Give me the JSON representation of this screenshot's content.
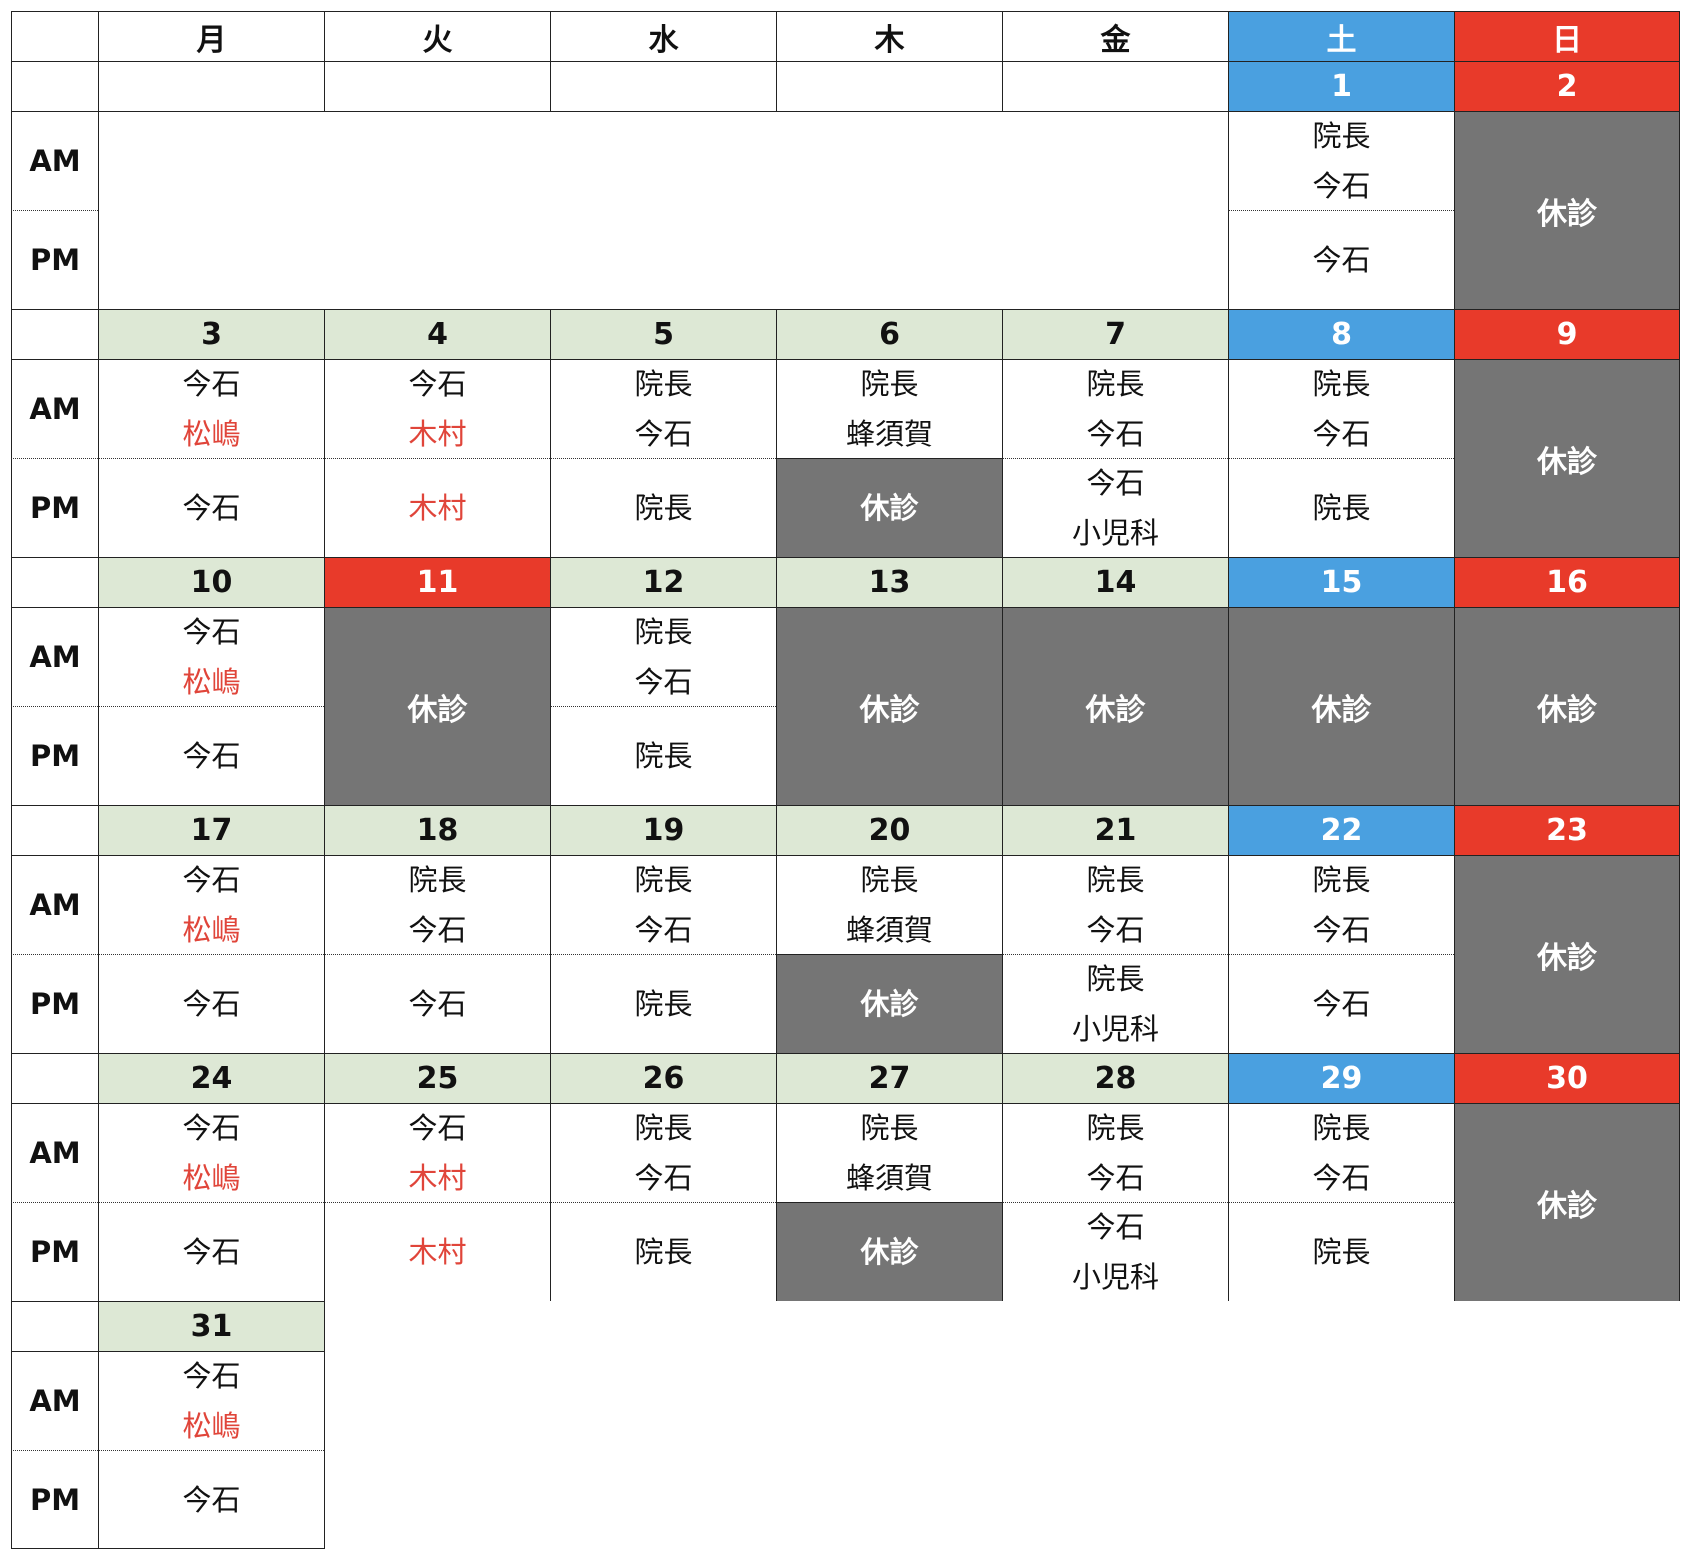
{
  "weekday_headers": [
    "月",
    "火",
    "水",
    "木",
    "金",
    "土",
    "日"
  ],
  "am_label": "AM",
  "pm_label": "PM",
  "closed_label": "休診",
  "colors": {
    "saturday": "#4aa0e0",
    "sunday": "#e83a2a",
    "weekday": "#dde8d5",
    "closed": "#757575",
    "red_doctor": "#e0453a"
  },
  "weeks": [
    {
      "days": [
        null,
        null,
        null,
        null,
        null,
        {
          "date": "1",
          "am": [
            "院長",
            "今石"
          ],
          "pm": [
            "今石"
          ]
        },
        {
          "date": "2",
          "full_closed": true
        }
      ]
    },
    {
      "days": [
        {
          "date": "3",
          "am": [
            "今石",
            "松嶋"
          ],
          "pm": [
            "今石"
          ]
        },
        {
          "date": "4",
          "am": [
            "今石",
            "木村"
          ],
          "pm": [
            "木村"
          ]
        },
        {
          "date": "5",
          "am": [
            "院長",
            "今石"
          ],
          "pm": [
            "院長"
          ]
        },
        {
          "date": "6",
          "am": [
            "院長",
            "蜂須賀"
          ],
          "pm_closed": true
        },
        {
          "date": "7",
          "am": [
            "院長",
            "今石"
          ],
          "pm": [
            "今石",
            "小児科"
          ]
        },
        {
          "date": "8",
          "am": [
            "院長",
            "今石"
          ],
          "pm": [
            "院長"
          ]
        },
        {
          "date": "9",
          "full_closed": true
        }
      ]
    },
    {
      "days": [
        {
          "date": "10",
          "am": [
            "今石",
            "松嶋"
          ],
          "pm": [
            "今石"
          ]
        },
        {
          "date": "11",
          "full_closed": true,
          "holiday": true
        },
        {
          "date": "12",
          "am": [
            "院長",
            "今石"
          ],
          "pm": [
            "院長"
          ]
        },
        {
          "date": "13",
          "full_closed": true
        },
        {
          "date": "14",
          "full_closed": true
        },
        {
          "date": "15",
          "full_closed": true
        },
        {
          "date": "16",
          "full_closed": true
        }
      ]
    },
    {
      "days": [
        {
          "date": "17",
          "am": [
            "今石",
            "松嶋"
          ],
          "pm": [
            "今石"
          ]
        },
        {
          "date": "18",
          "am": [
            "院長",
            "今石"
          ],
          "pm": [
            "今石"
          ]
        },
        {
          "date": "19",
          "am": [
            "院長",
            "今石"
          ],
          "pm": [
            "院長"
          ]
        },
        {
          "date": "20",
          "am": [
            "院長",
            "蜂須賀"
          ],
          "pm_closed": true
        },
        {
          "date": "21",
          "am": [
            "院長",
            "今石"
          ],
          "pm": [
            "院長",
            "小児科"
          ]
        },
        {
          "date": "22",
          "am": [
            "院長",
            "今石"
          ],
          "pm": [
            "今石"
          ]
        },
        {
          "date": "23",
          "full_closed": true
        }
      ]
    },
    {
      "days": [
        {
          "date": "24",
          "am": [
            "今石",
            "松嶋"
          ],
          "pm": [
            "今石"
          ]
        },
        {
          "date": "25",
          "am": [
            "今石",
            "木村"
          ],
          "pm": [
            "木村"
          ]
        },
        {
          "date": "26",
          "am": [
            "院長",
            "今石"
          ],
          "pm": [
            "院長"
          ]
        },
        {
          "date": "27",
          "am": [
            "院長",
            "蜂須賀"
          ],
          "pm_closed": true
        },
        {
          "date": "28",
          "am": [
            "院長",
            "今石"
          ],
          "pm": [
            "今石",
            "小児科"
          ]
        },
        {
          "date": "29",
          "am": [
            "院長",
            "今石"
          ],
          "pm": [
            "院長"
          ]
        },
        {
          "date": "30",
          "full_closed": true
        }
      ]
    },
    {
      "days": [
        {
          "date": "31",
          "am": [
            "今石",
            "松嶋"
          ],
          "pm": [
            "今石"
          ]
        },
        null,
        null,
        null,
        null,
        null,
        null
      ]
    }
  ],
  "red_doctors": [
    "松嶋",
    "木村"
  ]
}
